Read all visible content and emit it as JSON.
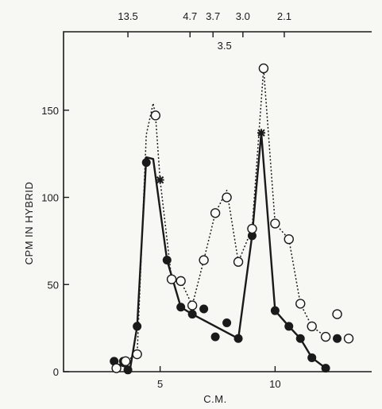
{
  "chart_data": {
    "type": "line",
    "xlabel": "C.M.",
    "ylabel": "CPM IN HYBRID",
    "xlim": [
      0.8,
      14.2
    ],
    "ylim": [
      0,
      195
    ],
    "x_ticks": [
      5,
      10
    ],
    "x_tick_labels": [
      "5",
      "10"
    ],
    "y_ticks": [
      0,
      50,
      100,
      150
    ],
    "y_tick_labels": [
      "0",
      "50",
      "100",
      "150"
    ],
    "top_markers": [
      {
        "label": "13.5",
        "x": 3.6,
        "row": 1
      },
      {
        "label": "4.7",
        "x": 6.3,
        "row": 1
      },
      {
        "label": "3.7",
        "x": 7.3,
        "row": 1
      },
      {
        "label": "3.0",
        "x": 8.6,
        "row": 1
      },
      {
        "label": "2.1",
        "x": 10.4,
        "row": 1
      },
      {
        "label": "3.5",
        "x": 7.8,
        "row": 2
      }
    ],
    "series": [
      {
        "style": "solid",
        "marker": "filled-circle",
        "points": [
          [
            3.0,
            6
          ],
          [
            3.4,
            6
          ],
          [
            3.6,
            1
          ],
          [
            4.0,
            26
          ],
          [
            4.4,
            120
          ],
          [
            5.3,
            64
          ],
          [
            5.9,
            37
          ],
          [
            6.4,
            33
          ],
          [
            6.9,
            36
          ],
          [
            7.4,
            20
          ],
          [
            7.9,
            28
          ],
          [
            8.4,
            19
          ],
          [
            9.0,
            78
          ],
          [
            10.0,
            35
          ],
          [
            10.6,
            26
          ],
          [
            11.1,
            19
          ],
          [
            11.6,
            8
          ],
          [
            12.2,
            2
          ],
          [
            12.7,
            19
          ],
          [
            13.2,
            19
          ]
        ],
        "line": [
          [
            3.2,
            4
          ],
          [
            3.7,
            2
          ],
          [
            4.0,
            26
          ],
          [
            4.4,
            123
          ],
          [
            4.7,
            122
          ],
          [
            5.3,
            64
          ],
          [
            5.9,
            37
          ],
          [
            6.4,
            33
          ],
          [
            8.4,
            19
          ],
          [
            9.0,
            78
          ],
          [
            9.4,
            137
          ],
          [
            10.0,
            35
          ],
          [
            10.6,
            26
          ],
          [
            11.1,
            19
          ],
          [
            11.6,
            8
          ],
          [
            12.2,
            2
          ]
        ]
      },
      {
        "style": "dotted",
        "marker": "open-circle",
        "points": [
          [
            3.1,
            2
          ],
          [
            3.5,
            6
          ],
          [
            4.0,
            10
          ],
          [
            4.8,
            147
          ],
          [
            5.5,
            53
          ],
          [
            5.9,
            52
          ],
          [
            6.4,
            38
          ],
          [
            6.9,
            64
          ],
          [
            7.4,
            91
          ],
          [
            7.9,
            100
          ],
          [
            8.4,
            63
          ],
          [
            9.0,
            82
          ],
          [
            9.5,
            174
          ],
          [
            10.0,
            85
          ],
          [
            10.6,
            76
          ],
          [
            11.1,
            39
          ],
          [
            11.6,
            26
          ],
          [
            12.2,
            20
          ],
          [
            12.7,
            33
          ],
          [
            13.2,
            19
          ]
        ],
        "line": [
          [
            3.0,
            3
          ],
          [
            3.5,
            6
          ],
          [
            4.0,
            10
          ],
          [
            4.4,
            136
          ],
          [
            4.7,
            154
          ],
          [
            4.8,
            147
          ],
          [
            5.0,
            110
          ],
          [
            5.5,
            53
          ],
          [
            5.9,
            52
          ],
          [
            6.4,
            38
          ],
          [
            6.9,
            64
          ],
          [
            7.4,
            91
          ],
          [
            7.9,
            104
          ],
          [
            8.4,
            63
          ],
          [
            9.0,
            82
          ],
          [
            9.5,
            174
          ],
          [
            10.0,
            85
          ],
          [
            10.6,
            76
          ],
          [
            11.1,
            39
          ],
          [
            11.6,
            26
          ],
          [
            12.2,
            20
          ]
        ]
      }
    ],
    "star_markers": [
      [
        5.0,
        110
      ],
      [
        9.4,
        137
      ]
    ]
  }
}
